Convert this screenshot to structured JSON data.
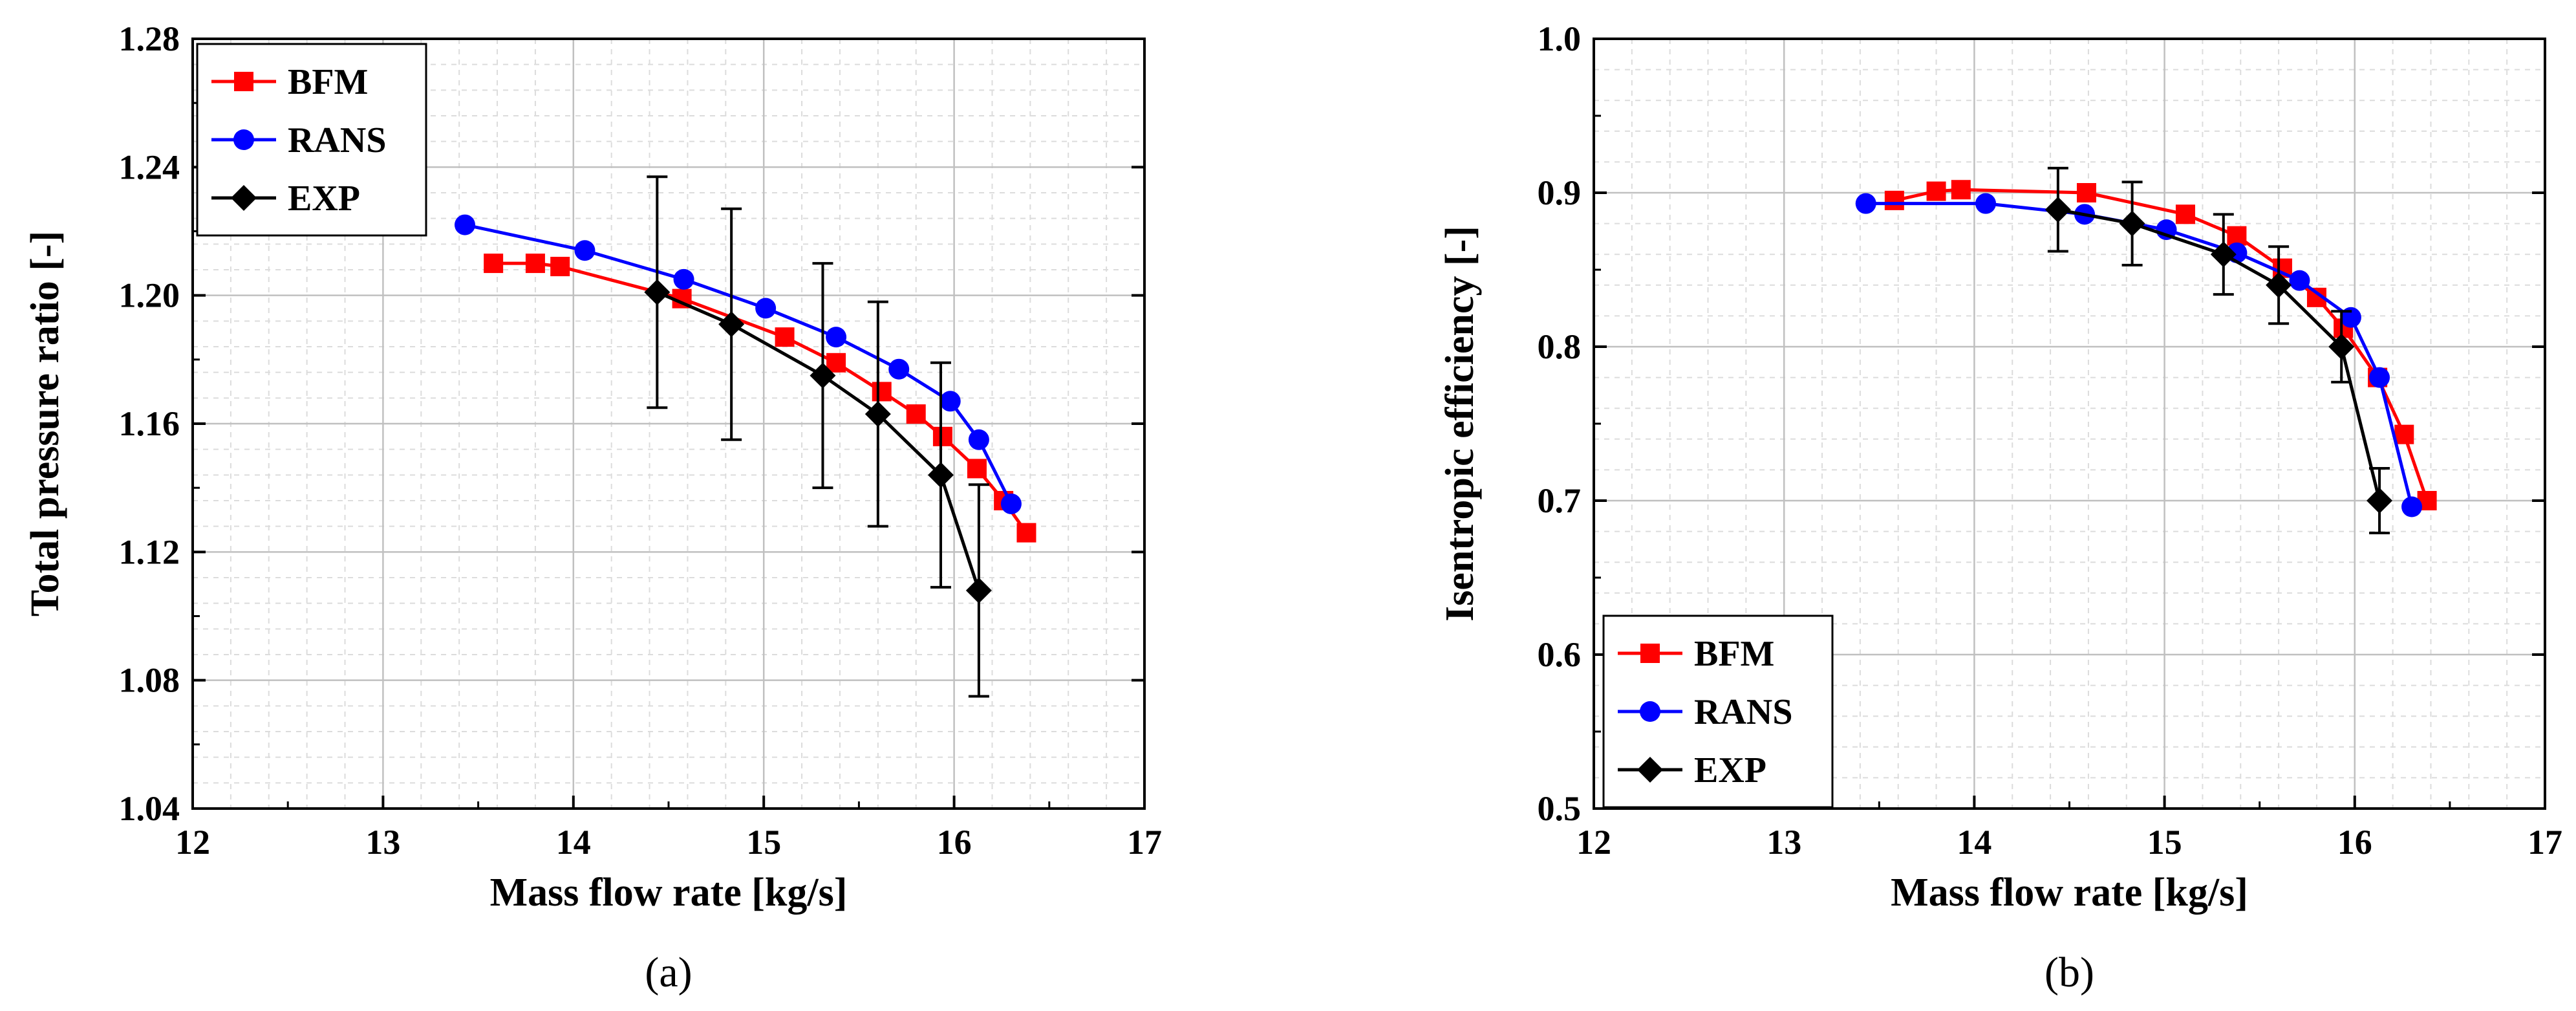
{
  "chart_data": [
    {
      "type": "line",
      "panel_label": "(a)",
      "xlabel": "Mass flow rate [kg/s]",
      "ylabel": "Total pressure ratio [-]",
      "xlim": [
        12,
        17
      ],
      "ylim": [
        1.04,
        1.28
      ],
      "xticks": [
        12,
        13,
        14,
        15,
        16,
        17
      ],
      "xtick_labels": [
        "12",
        "13",
        "14",
        "15",
        "16",
        "17"
      ],
      "yticks": [
        1.04,
        1.08,
        1.12,
        1.16,
        1.2,
        1.24,
        1.28
      ],
      "ytick_labels": [
        "1.04",
        "1.08",
        "1.12",
        "1.16",
        "1.20",
        "1.24",
        "1.28"
      ],
      "grid": true,
      "legend_position": "top-left",
      "series": [
        {
          "name": "BFM",
          "color": "#ff0000",
          "marker": "square",
          "linestyle": "solid",
          "x": [
            13.58,
            13.8,
            13.93,
            14.57,
            15.11,
            15.38,
            15.62,
            15.8,
            15.94,
            16.12,
            16.26,
            16.38
          ],
          "y": [
            1.21,
            1.21,
            1.209,
            1.199,
            1.187,
            1.179,
            1.17,
            1.163,
            1.156,
            1.146,
            1.136,
            1.126
          ]
        },
        {
          "name": "RANS",
          "color": "#0000ff",
          "marker": "circle",
          "linestyle": "solid",
          "x": [
            13.43,
            14.06,
            14.58,
            15.01,
            15.38,
            15.71,
            15.98,
            16.13,
            16.3
          ],
          "y": [
            1.222,
            1.214,
            1.205,
            1.196,
            1.187,
            1.177,
            1.167,
            1.155,
            1.135
          ]
        },
        {
          "name": "EXP",
          "color": "#000000",
          "marker": "diamond",
          "linestyle": "solid",
          "x": [
            14.44,
            14.83,
            15.31,
            15.6,
            15.93,
            16.13
          ],
          "y": [
            1.201,
            1.191,
            1.175,
            1.163,
            1.144,
            1.108
          ],
          "error": [
            0.036,
            0.036,
            0.035,
            0.035,
            0.035,
            0.033
          ]
        }
      ]
    },
    {
      "type": "line",
      "panel_label": "(b)",
      "xlabel": "Mass flow rate [kg/s]",
      "ylabel": "Isentropic efficiency [-]",
      "xlim": [
        12,
        17
      ],
      "ylim": [
        0.5,
        1.0
      ],
      "xticks": [
        12,
        13,
        14,
        15,
        16,
        17
      ],
      "xtick_labels": [
        "12",
        "13",
        "14",
        "15",
        "16",
        "17"
      ],
      "yticks": [
        0.5,
        0.6,
        0.7,
        0.8,
        0.9,
        1.0
      ],
      "ytick_labels": [
        "0.5",
        "0.6",
        "0.7",
        "0.8",
        "0.9",
        "1.0"
      ],
      "grid": true,
      "legend_position": "bottom-left",
      "series": [
        {
          "name": "BFM",
          "color": "#ff0000",
          "marker": "square",
          "linestyle": "solid",
          "x": [
            13.58,
            13.8,
            13.93,
            14.59,
            15.11,
            15.38,
            15.62,
            15.8,
            15.94,
            16.12,
            16.26,
            16.38
          ],
          "y": [
            0.895,
            0.901,
            0.902,
            0.9,
            0.886,
            0.872,
            0.851,
            0.832,
            0.812,
            0.78,
            0.743,
            0.7
          ]
        },
        {
          "name": "RANS",
          "color": "#0000ff",
          "marker": "circle",
          "linestyle": "solid",
          "x": [
            13.43,
            14.06,
            14.58,
            15.01,
            15.38,
            15.71,
            15.98,
            16.13,
            16.3
          ],
          "y": [
            0.893,
            0.893,
            0.886,
            0.876,
            0.861,
            0.843,
            0.819,
            0.78,
            0.696
          ]
        },
        {
          "name": "EXP",
          "color": "#000000",
          "marker": "diamond",
          "linestyle": "solid",
          "x": [
            14.44,
            14.83,
            15.31,
            15.6,
            15.93,
            16.13
          ],
          "y": [
            0.889,
            0.88,
            0.86,
            0.84,
            0.8,
            0.7
          ],
          "error": [
            0.027,
            0.027,
            0.026,
            0.025,
            0.023,
            0.021
          ]
        }
      ]
    }
  ]
}
